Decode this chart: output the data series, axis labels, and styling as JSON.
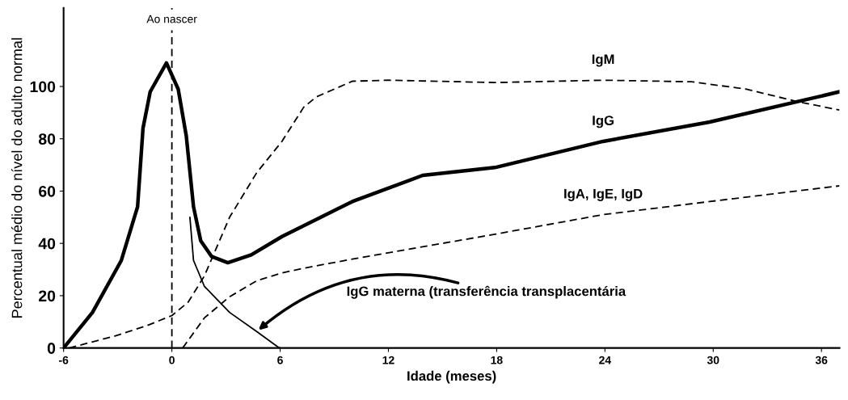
{
  "chart_data": {
    "type": "line",
    "xlabel": "Idade (meses)",
    "ylabel": "Percentual médio do nível do adulto normal",
    "xlim": [
      -6,
      37
    ],
    "ylim": [
      0,
      130
    ],
    "xticks": [
      -6,
      0,
      6,
      12,
      18,
      24,
      30,
      36
    ],
    "yticks": [
      0,
      20,
      40,
      60,
      80,
      100
    ],
    "grid": false,
    "legend": false,
    "marker": "none",
    "series": [
      {
        "name": "IgG",
        "color": "#000000",
        "line_style": "solid",
        "x": [
          -6,
          -4.4,
          -2.8,
          -1.9,
          -1.6,
          -1.2,
          -0.3,
          0.35,
          0.8,
          1.2,
          1.6,
          2.2,
          3.1,
          4.4,
          6.1,
          10,
          13.9,
          17.9,
          23.9,
          29.8,
          35.8,
          37
        ],
        "values": [
          0,
          13.6,
          33.5,
          54,
          84,
          98,
          109,
          99,
          81,
          54,
          41,
          35,
          32.6,
          35.6,
          42.6,
          56,
          66,
          69,
          79,
          86.4,
          96,
          98
        ]
      },
      {
        "name": "IgM",
        "color": "#000000",
        "line_style": "dashed",
        "x": [
          -5.7,
          -3.2,
          -1.4,
          0,
          0.9,
          1.8,
          3.2,
          4.7,
          6.1,
          7.3,
          8,
          10,
          12,
          17.9,
          23.9,
          28.8,
          31.8,
          34.8,
          37
        ],
        "values": [
          0,
          4.5,
          8.5,
          12.4,
          17.5,
          27.5,
          50,
          67,
          79,
          92,
          96,
          102,
          102.4,
          101.5,
          102.4,
          101.8,
          99,
          94,
          91
        ]
      },
      {
        "name": "IgA, IgE, IgD",
        "color": "#000000",
        "line_style": "dashed",
        "x": [
          0.6,
          1.8,
          3.2,
          4.7,
          6.1,
          7.3,
          10,
          17.9,
          23.9,
          29.8,
          37
        ],
        "values": [
          0,
          11.5,
          19.6,
          25.7,
          28.7,
          30.5,
          34,
          43.5,
          51,
          56,
          62
        ]
      },
      {
        "color": "#000000",
        "line_style": "solid",
        "x": [
          1,
          1.2,
          1.8,
          3.2,
          4.7,
          5.9,
          6
        ],
        "values": [
          50,
          33.5,
          23.6,
          13.6,
          6.3,
          0.3,
          0
        ]
      }
    ],
    "ref_lines": [
      {
        "axis": "x",
        "value": 0,
        "label": "Ao nascer",
        "color": "#000000",
        "line_style": "dashed"
      }
    ],
    "annotations": [
      "IgG materna (transferência transplacentária"
    ]
  }
}
